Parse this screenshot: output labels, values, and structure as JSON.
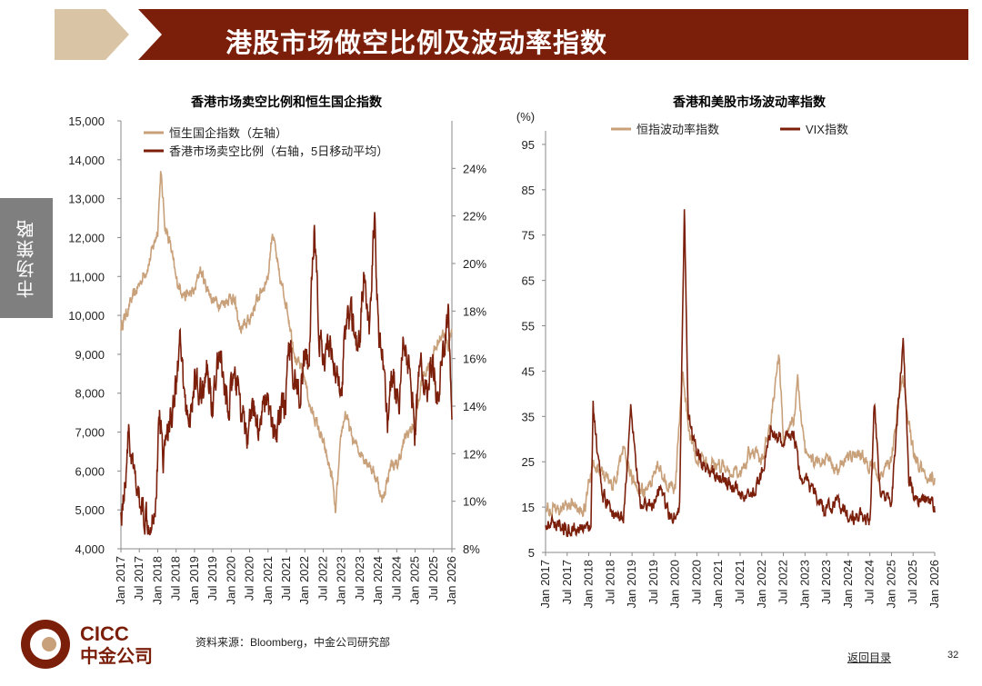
{
  "header": {
    "title": "港股市场做空比例及波动率指数",
    "accent_color": "#7B1F0B",
    "chevron_color": "#D9C4A5"
  },
  "side_tab": {
    "label": "市场策略"
  },
  "colors": {
    "tan": "#C8A07A",
    "maroon": "#7B1F0B"
  },
  "chart_data": [
    {
      "type": "line",
      "title": "香港市场卖空比例和恒生国企指数",
      "x_tick_labels": [
        "Jan 2017",
        "Jul 2017",
        "Jan 2018",
        "Jul 2018",
        "Jan 2019",
        "Jul 2019",
        "Jan 2020",
        "Jul 2020",
        "Jan 2021",
        "Jul 2021",
        "Jan 2022",
        "Jul 2022",
        "Jan 2023",
        "Jul 2023",
        "Jan 2024",
        "Jul 2024",
        "Jan 2025",
        "Jul 2025",
        "Jan 2026"
      ],
      "x_range": [
        2017.0,
        2026.0
      ],
      "left_axis": {
        "ylim": [
          4000,
          15000
        ],
        "ticks": [
          "4,000",
          "5,000",
          "6,000",
          "7,000",
          "8,000",
          "9,000",
          "10,000",
          "11,000",
          "12,000",
          "13,000",
          "14,000",
          "15,000"
        ]
      },
      "right_axis": {
        "ylim": [
          8,
          26
        ],
        "ticks": [
          "8%",
          "10%",
          "12%",
          "14%",
          "16%",
          "18%",
          "20%",
          "22%",
          "24%"
        ]
      },
      "legend_position": "top-left",
      "series": [
        {
          "name": "恒生国企指数（左轴）",
          "axis": "left",
          "color": "#C8A07A",
          "x": [
            2017.0,
            2017.25,
            2017.5,
            2017.75,
            2018.0,
            2018.08,
            2018.2,
            2018.35,
            2018.5,
            2018.75,
            2019.0,
            2019.15,
            2019.3,
            2019.5,
            2019.75,
            2020.0,
            2020.1,
            2020.25,
            2020.5,
            2020.75,
            2021.0,
            2021.12,
            2021.3,
            2021.5,
            2021.75,
            2022.0,
            2022.15,
            2022.3,
            2022.5,
            2022.75,
            2022.83,
            2023.0,
            2023.1,
            2023.3,
            2023.5,
            2023.75,
            2024.0,
            2024.1,
            2024.35,
            2024.5,
            2024.75,
            2025.0,
            2025.2,
            2025.5,
            2025.75,
            2025.9,
            2026.0
          ],
          "values": [
            9700,
            10300,
            10800,
            11300,
            12200,
            13700,
            12300,
            11800,
            10900,
            10500,
            10600,
            11200,
            10800,
            10400,
            10300,
            10500,
            10300,
            9600,
            9900,
            10500,
            11000,
            12200,
            11000,
            10300,
            8900,
            8400,
            7600,
            7300,
            6700,
            5800,
            4900,
            7000,
            7500,
            6800,
            6500,
            6200,
            5700,
            5200,
            6200,
            6100,
            6900,
            7200,
            8400,
            9000,
            9600,
            9200,
            9700
          ]
        },
        {
          "name": "香港市场卖空比例（右轴，5日移动平均）",
          "axis": "right",
          "color": "#7B1F0B",
          "x": [
            2017.0,
            2017.1,
            2017.2,
            2017.35,
            2017.5,
            2017.65,
            2017.8,
            2017.95,
            2018.05,
            2018.15,
            2018.3,
            2018.5,
            2018.6,
            2018.75,
            2018.9,
            2019.0,
            2019.2,
            2019.35,
            2019.5,
            2019.7,
            2019.85,
            2020.0,
            2020.15,
            2020.3,
            2020.45,
            2020.6,
            2020.75,
            2020.9,
            2021.0,
            2021.15,
            2021.3,
            2021.45,
            2021.6,
            2021.75,
            2021.85,
            2022.0,
            2022.1,
            2022.25,
            2022.4,
            2022.55,
            2022.7,
            2022.85,
            2023.0,
            2023.15,
            2023.3,
            2023.45,
            2023.6,
            2023.75,
            2023.9,
            2024.0,
            2024.1,
            2024.25,
            2024.4,
            2024.55,
            2024.7,
            2024.85,
            2025.0,
            2025.15,
            2025.3,
            2025.45,
            2025.6,
            2025.75,
            2025.9,
            2026.0
          ],
          "values": [
            9.5,
            10.5,
            13.0,
            11.0,
            10.0,
            9.5,
            9.3,
            10.0,
            13.8,
            12.0,
            13.0,
            15.0,
            16.5,
            14.0,
            13.5,
            15.0,
            14.5,
            15.5,
            14.0,
            16.5,
            14.0,
            14.5,
            15.0,
            13.5,
            12.5,
            14.0,
            13.0,
            14.5,
            14.0,
            12.5,
            13.5,
            14.0,
            16.5,
            15.0,
            14.5,
            16.0,
            15.5,
            21.5,
            17.0,
            15.5,
            17.0,
            15.0,
            15.0,
            18.0,
            17.5,
            16.0,
            19.5,
            17.0,
            22.0,
            17.0,
            16.5,
            13.5,
            15.5,
            14.0,
            17.0,
            15.5,
            13.0,
            16.0,
            14.5,
            16.0,
            14.5,
            16.0,
            18.0,
            14.0
          ]
        }
      ]
    },
    {
      "type": "line",
      "title": "香港和美股市场波动率指数",
      "y_unit": "(%)",
      "x_tick_labels": [
        "Jan 2017",
        "Jul 2017",
        "Jan 2018",
        "Jul 2018",
        "Jan 2019",
        "Jul 2019",
        "Jan 2020",
        "Jul 2020",
        "Jan 2021",
        "Jul 2021",
        "Jan 2022",
        "Jul 2022",
        "Jan 2023",
        "Jul 2023",
        "Jan 2024",
        "Jul 2024",
        "Jan 2025",
        "Jul 2025",
        "Jan 2026"
      ],
      "x_range": [
        2017.0,
        2026.0
      ],
      "ylim": [
        5,
        100
      ],
      "y_ticks": [
        "5",
        "15",
        "25",
        "35",
        "45",
        "55",
        "65",
        "75",
        "85",
        "95"
      ],
      "legend_position": "top",
      "series": [
        {
          "name": "恒指波动率指数",
          "color": "#C8A07A",
          "x": [
            2017.0,
            2017.3,
            2017.6,
            2017.9,
            2018.1,
            2018.3,
            2018.6,
            2018.8,
            2019.0,
            2019.3,
            2019.6,
            2019.8,
            2020.0,
            2020.17,
            2020.22,
            2020.35,
            2020.5,
            2020.75,
            2021.0,
            2021.25,
            2021.5,
            2021.75,
            2022.0,
            2022.2,
            2022.4,
            2022.5,
            2022.75,
            2022.83,
            2023.0,
            2023.2,
            2023.5,
            2023.75,
            2024.0,
            2024.2,
            2024.5,
            2024.75,
            2025.0,
            2025.25,
            2025.5,
            2025.75,
            2026.0
          ],
          "values": [
            15,
            14,
            16,
            15,
            25,
            22,
            20,
            28,
            21,
            18,
            24,
            20,
            19,
            45,
            40,
            30,
            26,
            25,
            24,
            23,
            22,
            28,
            25,
            33,
            49,
            30,
            35,
            43,
            28,
            25,
            26,
            24,
            26,
            28,
            24,
            22,
            26,
            44,
            27,
            22,
            21
          ]
        },
        {
          "name": "VIX指数",
          "color": "#7B1F0B",
          "x": [
            2017.0,
            2017.3,
            2017.6,
            2017.9,
            2018.05,
            2018.1,
            2018.3,
            2018.6,
            2018.8,
            2018.97,
            2019.2,
            2019.5,
            2019.6,
            2019.9,
            2020.0,
            2020.1,
            2020.21,
            2020.3,
            2020.5,
            2020.75,
            2021.0,
            2021.25,
            2021.5,
            2021.75,
            2022.0,
            2022.2,
            2022.45,
            2022.75,
            2022.9,
            2023.0,
            2023.2,
            2023.45,
            2023.75,
            2024.0,
            2024.25,
            2024.5,
            2024.6,
            2024.75,
            2025.0,
            2025.27,
            2025.4,
            2025.6,
            2025.85,
            2026.0
          ],
          "values": [
            12,
            11,
            10,
            10,
            11,
            37,
            18,
            13,
            12,
            36,
            15,
            16,
            19,
            13,
            14,
            15,
            82,
            35,
            27,
            23,
            22,
            20,
            18,
            17,
            22,
            32,
            30,
            31,
            21,
            21,
            19,
            14,
            16,
            13,
            13,
            12,
            38,
            17,
            16,
            52,
            21,
            16,
            17,
            15
          ]
        }
      ]
    }
  ],
  "footer": {
    "logo_letters": "CICC",
    "logo_name": "中金公司",
    "source_note": "资料来源：Bloomberg，中金公司研究部",
    "back_link": "返回目录",
    "page_number": "32"
  }
}
